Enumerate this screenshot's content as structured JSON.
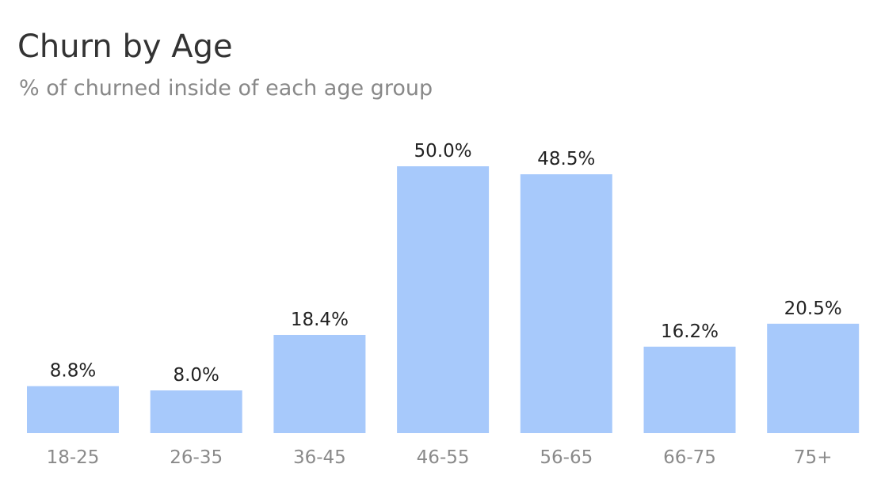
{
  "chart_data": {
    "type": "bar",
    "title": "Churn by Age",
    "subtitle": "% of churned inside of each age group",
    "categories": [
      "18-25",
      "26-35",
      "36-45",
      "46-55",
      "56-65",
      "66-75",
      "75+"
    ],
    "values": [
      8.8,
      8.0,
      18.4,
      50.0,
      48.5,
      16.2,
      20.5
    ],
    "data_labels": [
      "8.8%",
      "8.0%",
      "18.4%",
      "50.0%",
      "48.5%",
      "16.2%",
      "20.5%"
    ],
    "value_unit": "%",
    "xlabel": "",
    "ylabel": "",
    "ylim": [
      0,
      50
    ],
    "grid": false,
    "legend": "none",
    "bar_color": "#a7c9fb"
  }
}
